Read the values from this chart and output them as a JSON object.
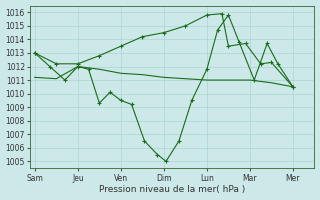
{
  "background_color": "#cce8e8",
  "grid_color": "#aad4d4",
  "line_color": "#1a6b1a",
  "xlabel": "Pression niveau de la mer( hPa )",
  "ylim": [
    1004.5,
    1016.5
  ],
  "yticks": [
    1005,
    1006,
    1007,
    1008,
    1009,
    1010,
    1011,
    1012,
    1013,
    1014,
    1015,
    1016
  ],
  "x_labels": [
    "Sam",
    "Jeu",
    "Ven",
    "Dim",
    "Lun",
    "Mar",
    "Mer"
  ],
  "x_positions": [
    0,
    2,
    4,
    6,
    8,
    10,
    12
  ],
  "xlim": [
    -0.2,
    13.0
  ],
  "line1_x": [
    0,
    0.7,
    1.4,
    2.0,
    2.5,
    3.0,
    3.5,
    4.0,
    4.5,
    5.1,
    5.7,
    6.1,
    6.7,
    7.3,
    8.0,
    8.5,
    9.0,
    9.5,
    10.2,
    10.8,
    11.3,
    12.0
  ],
  "line1_y": [
    1013.0,
    1012.0,
    1011.0,
    1012.0,
    1011.8,
    1009.3,
    1010.1,
    1009.5,
    1009.2,
    1006.5,
    1005.5,
    1005.0,
    1006.5,
    1009.5,
    1011.8,
    1014.7,
    1015.8,
    1013.8,
    1011.0,
    1013.7,
    1012.2,
    1010.5
  ],
  "line2_x": [
    0,
    1,
    2,
    3,
    4,
    5,
    6,
    7,
    8,
    9,
    10,
    11,
    12
  ],
  "line2_y": [
    1011.2,
    1011.1,
    1012.0,
    1011.8,
    1011.5,
    1011.4,
    1011.2,
    1011.1,
    1011.0,
    1011.0,
    1011.0,
    1010.8,
    1010.5
  ],
  "line3_x": [
    0,
    1,
    2,
    3,
    4,
    5,
    6,
    7,
    8,
    8.7,
    9.0,
    9.8,
    10.5,
    11.0,
    12.0
  ],
  "line3_y": [
    1013.0,
    1012.2,
    1012.2,
    1012.8,
    1013.5,
    1014.2,
    1014.5,
    1015.0,
    1015.8,
    1015.9,
    1013.5,
    1013.7,
    1012.2,
    1012.3,
    1010.5
  ]
}
